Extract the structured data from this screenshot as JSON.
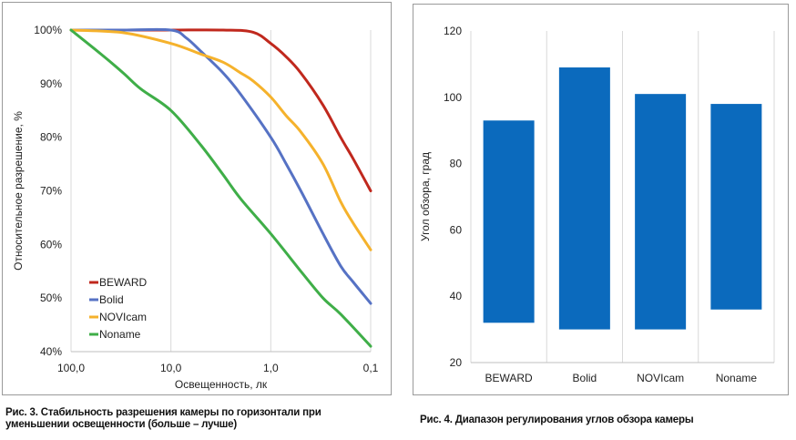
{
  "chart_data": [
    {
      "type": "line",
      "xlabel": "Освещенность, лк",
      "ylabel": "Относительное разрешение, %",
      "x_scale": "log-reversed",
      "x_ticks": [
        100,
        10,
        1,
        0.1
      ],
      "x_tick_labels": [
        "100,0",
        "10,0",
        "1,0",
        "0,1"
      ],
      "ylim": [
        40,
        100
      ],
      "y_ticks": [
        40,
        50,
        60,
        70,
        80,
        90,
        100
      ],
      "y_tick_labels": [
        "40%",
        "50%",
        "60%",
        "70%",
        "80%",
        "90%",
        "100%"
      ],
      "grid": "vertical",
      "legend": "bottom-left",
      "series": [
        {
          "name": "BEWARD",
          "color": "#c0281d",
          "x": [
            100,
            30,
            10,
            3,
            1.5,
            1,
            0.7,
            0.5,
            0.3,
            0.2,
            0.15,
            0.1
          ],
          "y": [
            100,
            100,
            100,
            100,
            99.6,
            97.5,
            95,
            92,
            86,
            80,
            76,
            70
          ]
        },
        {
          "name": "Bolid",
          "color": "#5672c4",
          "x": [
            100,
            30,
            10,
            7,
            5,
            3,
            2,
            1,
            0.7,
            0.5,
            0.3,
            0.2,
            0.15,
            0.1
          ],
          "y": [
            100,
            100,
            100,
            98.5,
            96,
            92,
            88,
            80,
            75,
            70,
            62,
            56,
            53,
            49
          ]
        },
        {
          "name": "NOVIcam",
          "color": "#f5b22c",
          "x": [
            100,
            30,
            10,
            5,
            3,
            2,
            1.5,
            1,
            0.7,
            0.5,
            0.3,
            0.2,
            0.15,
            0.1
          ],
          "y": [
            100,
            99.5,
            97.5,
            95.5,
            94,
            92,
            90.5,
            87.5,
            84,
            81,
            75,
            68,
            64,
            59
          ]
        },
        {
          "name": "Noname",
          "color": "#3fae48",
          "x": [
            100,
            50,
            30,
            20,
            10,
            5,
            3,
            2,
            1,
            0.5,
            0.3,
            0.2,
            0.1
          ],
          "y": [
            100,
            95.5,
            92,
            89,
            85,
            78.5,
            73,
            68.5,
            62,
            55,
            50,
            47,
            41
          ]
        }
      ]
    },
    {
      "type": "bar",
      "subtype": "floating-range",
      "ylabel": "Угол обзора, град",
      "categories": [
        "BEWARD",
        "Bolid",
        "NOVIcam",
        "Noname"
      ],
      "ranges": [
        [
          32,
          93
        ],
        [
          30,
          109
        ],
        [
          30,
          101
        ],
        [
          36,
          98
        ]
      ],
      "ylim": [
        20,
        120
      ],
      "y_ticks": [
        20,
        40,
        60,
        80,
        100,
        120
      ],
      "grid": "vertical",
      "color": "#0b6abd"
    }
  ],
  "captions": {
    "fig3_line1": "Рис. 3. Стабильность разрешения камеры по горизонтали при",
    "fig3_line2": "уменьшении освещенности (больше – лучше)",
    "fig4": "Рис. 4. Диапазон регулирования углов обзора камеры"
  }
}
